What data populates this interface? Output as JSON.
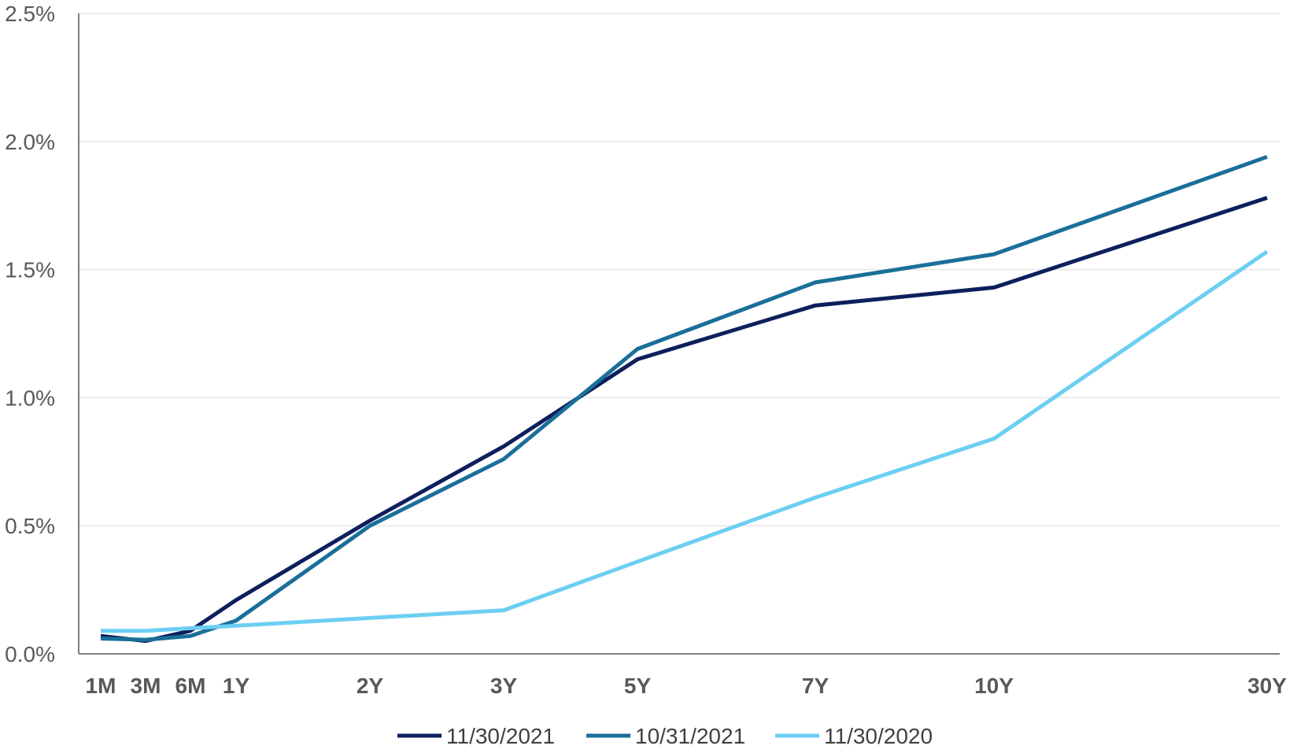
{
  "chart_data": {
    "type": "line",
    "title": "",
    "xlabel": "",
    "ylabel": "",
    "categories": [
      "1M",
      "3M",
      "6M",
      "1Y",
      "2Y",
      "3Y",
      "5Y",
      "7Y",
      "10Y",
      "30Y"
    ],
    "y_tick_labels": [
      "0.0%",
      "0.5%",
      "1.0%",
      "1.5%",
      "2.0%",
      "2.5%"
    ],
    "ylim": [
      0,
      2.5
    ],
    "y_unit": "%",
    "grid": "horizontal",
    "legend_position": "bottom",
    "series": [
      {
        "name": "11/30/2021",
        "color": "#0d1f5c",
        "values": [
          0.07,
          0.05,
          0.09,
          0.21,
          0.52,
          0.81,
          1.15,
          1.36,
          1.43,
          1.78
        ]
      },
      {
        "name": "10/31/2021",
        "color": "#1a6f9a",
        "values": [
          0.06,
          0.055,
          0.07,
          0.13,
          0.5,
          0.76,
          1.19,
          1.45,
          1.56,
          1.94
        ]
      },
      {
        "name": "11/30/2020",
        "color": "#6ccff2",
        "values": [
          0.09,
          0.09,
          0.1,
          0.11,
          0.14,
          0.17,
          0.36,
          0.61,
          0.84,
          1.57
        ]
      }
    ]
  }
}
